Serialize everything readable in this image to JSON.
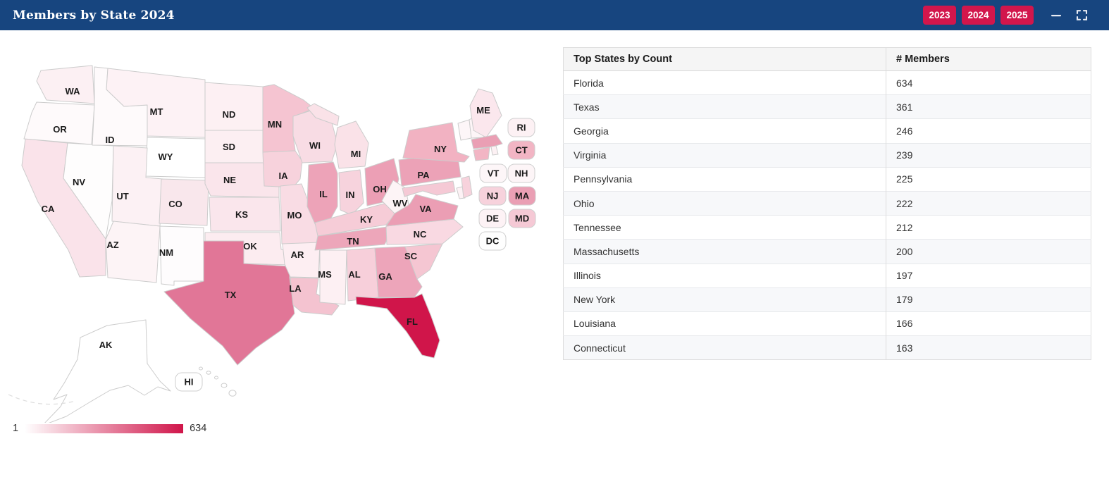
{
  "header": {
    "title": "Members by State 2024",
    "year_buttons": [
      "2023",
      "2024",
      "2025"
    ],
    "bar_color": "#17457F",
    "button_color": "#D2164C"
  },
  "table": {
    "columns": [
      "Top States by Count",
      "# Members"
    ],
    "rows": [
      [
        "Florida",
        "634"
      ],
      [
        "Texas",
        "361"
      ],
      [
        "Georgia",
        "246"
      ],
      [
        "Virginia",
        "239"
      ],
      [
        "Pennsylvania",
        "225"
      ],
      [
        "Ohio",
        "222"
      ],
      [
        "Tennessee",
        "212"
      ],
      [
        "Massachusetts",
        "200"
      ],
      [
        "Illinois",
        "197"
      ],
      [
        "New York",
        "179"
      ],
      [
        "Louisiana",
        "166"
      ],
      [
        "Connecticut",
        "163"
      ]
    ]
  },
  "legend": {
    "min_label": "1",
    "max_label": "634",
    "start_color": "#ffffff",
    "end_color": "#d0154a"
  },
  "chart_data": {
    "type": "heatmap",
    "subtype": "us-choropleth-map",
    "title": "Members by State 2024",
    "color_scale": {
      "min": 1,
      "max": 634,
      "min_color": "#ffffff",
      "max_color": "#d0154a"
    },
    "categories": [
      "Florida",
      "Texas",
      "Georgia",
      "Virginia",
      "Pennsylvania",
      "Ohio",
      "Tennessee",
      "Massachusetts",
      "Illinois",
      "New York",
      "Louisiana",
      "Connecticut"
    ],
    "values": [
      634,
      361,
      246,
      239,
      225,
      222,
      212,
      200,
      197,
      179,
      166,
      163
    ],
    "legend_position": "bottom-left"
  },
  "map": {
    "states": {
      "WA": {
        "label": "WA",
        "color": "#fcf0f3"
      },
      "OR": {
        "label": "OR",
        "color": "#fefafb"
      },
      "CA": {
        "label": "CA",
        "color": "#fae3ea"
      },
      "NV": {
        "label": "NV",
        "color": "#fefdfd"
      },
      "ID": {
        "label": "ID",
        "color": "#fefafb"
      },
      "MT": {
        "label": "MT",
        "color": "#fdf2f5"
      },
      "WY": {
        "label": "WY",
        "color": "#ffffff"
      },
      "UT": {
        "label": "UT",
        "color": "#fcf1f4"
      },
      "CO": {
        "label": "CO",
        "color": "#f9e7ec"
      },
      "AZ": {
        "label": "AZ",
        "color": "#fdf4f6"
      },
      "NM": {
        "label": "NM",
        "color": "#fefcfd"
      },
      "ND": {
        "label": "ND",
        "color": "#fdf0f3"
      },
      "SD": {
        "label": "SD",
        "color": "#fceff2"
      },
      "NE": {
        "label": "NE",
        "color": "#fae5eb"
      },
      "KS": {
        "label": "KS",
        "color": "#fae6ec"
      },
      "OK": {
        "label": "OK",
        "color": "#fcecf0"
      },
      "TX": {
        "label": "TX",
        "color": "#e17697"
      },
      "MN": {
        "label": "MN",
        "color": "#f5c4d1"
      },
      "IA": {
        "label": "IA",
        "color": "#f7d2dc"
      },
      "MO": {
        "label": "MO",
        "color": "#f9dce4"
      },
      "AR": {
        "label": "AR",
        "color": "#fdeef2"
      },
      "LA": {
        "label": "LA",
        "color": "#f4c3d0"
      },
      "WI": {
        "label": "WI",
        "color": "#f8dce4"
      },
      "MI": {
        "label": "MI",
        "color": "#fae2e8"
      },
      "IL": {
        "label": "IL",
        "color": "#eda3b8"
      },
      "IN": {
        "label": "IN",
        "color": "#f7d3dd"
      },
      "OH": {
        "label": "OH",
        "color": "#ec9fb5"
      },
      "KY": {
        "label": "KY",
        "color": "#f6ccd7"
      },
      "TN": {
        "label": "TN",
        "color": "#eda6ba"
      },
      "MS": {
        "label": "MS",
        "color": "#fdf0f3"
      },
      "AL": {
        "label": "AL",
        "color": "#f7cfda"
      },
      "GA": {
        "label": "GA",
        "color": "#eda5ba"
      },
      "FL": {
        "label": "FL",
        "color": "#d0154a"
      },
      "SC": {
        "label": "SC",
        "color": "#f5c6d2"
      },
      "NC": {
        "label": "NC",
        "color": "#f9d9e2"
      },
      "VA": {
        "label": "VA",
        "color": "#eb9eb4"
      },
      "WV": {
        "label": "WV",
        "color": "#fdf4f6"
      },
      "PA": {
        "label": "PA",
        "color": "#eca2b7"
      },
      "NY": {
        "label": "NY",
        "color": "#f2b2c2"
      },
      "ME": {
        "label": "ME",
        "color": "#fbe7ed"
      },
      "VT": {
        "label": "VT",
        "color": "#fdf6f8"
      },
      "NH": {
        "label": "NH",
        "color": "#fdf5f7"
      },
      "MA": {
        "label": "MA",
        "color": "#ea9fb4"
      },
      "CT": {
        "label": "CT",
        "color": "#f2b5c4"
      },
      "RI": {
        "label": "RI",
        "color": "#fdf1f4"
      },
      "NJ": {
        "label": "NJ",
        "color": "#f7d2dc"
      },
      "DE": {
        "label": "DE",
        "color": "#fdf2f5"
      },
      "MD": {
        "label": "MD",
        "color": "#f5c9d5"
      },
      "DC": {
        "label": "DC",
        "color": "#fefefe"
      },
      "AK": {
        "label": "AK",
        "color": "#ffffff"
      },
      "HI": {
        "label": "HI",
        "color": "#ffffff"
      }
    }
  }
}
